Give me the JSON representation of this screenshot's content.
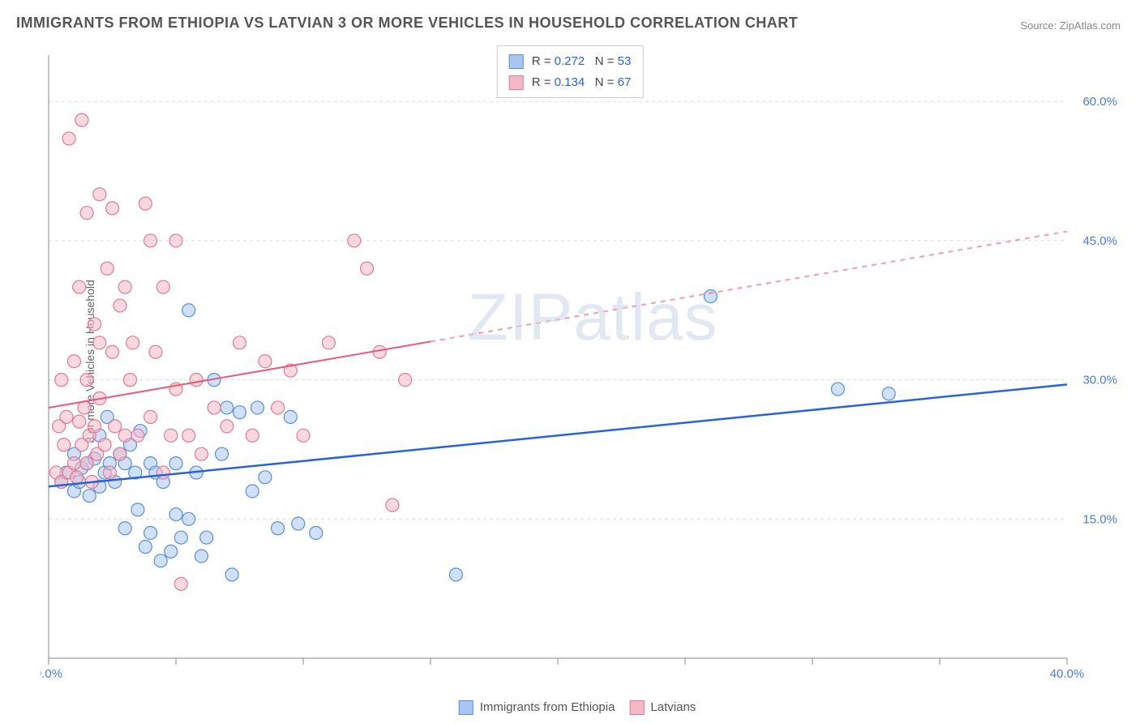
{
  "title": "IMMIGRANTS FROM ETHIOPIA VS LATVIAN 3 OR MORE VEHICLES IN HOUSEHOLD CORRELATION CHART",
  "source": "Source: ZipAtlas.com",
  "ylabel": "3 or more Vehicles in Household",
  "watermark": "ZIPatlas",
  "chart": {
    "type": "scatter",
    "xlim": [
      0,
      40
    ],
    "ylim": [
      0,
      65
    ],
    "xticks": [
      0,
      40
    ],
    "xtick_labels": [
      "0.0%",
      "40.0%"
    ],
    "yticks": [
      15,
      30,
      45,
      60
    ],
    "ytick_labels": [
      "15.0%",
      "30.0%",
      "45.0%",
      "60.0%"
    ],
    "x_minor_ticks": [
      5,
      10,
      15,
      20,
      25,
      30,
      35
    ],
    "grid_color": "#dddddd",
    "axis_color": "#888888",
    "background": "#ffffff",
    "marker_radius": 8,
    "marker_opacity": 0.55,
    "series": [
      {
        "name": "Immigrants from Ethiopia",
        "color_fill": "#a8c6f0",
        "color_stroke": "#5a8fd8",
        "R": "0.272",
        "N": "53",
        "trend": {
          "x1": 0,
          "y1": 18.5,
          "x2": 40,
          "y2": 29.5,
          "solid_until_x": 40,
          "stroke": "#2a62d8",
          "width": 2.5
        },
        "points": [
          [
            0.5,
            19
          ],
          [
            0.7,
            20
          ],
          [
            1.0,
            18
          ],
          [
            1.0,
            22
          ],
          [
            1.2,
            19
          ],
          [
            1.3,
            20.5
          ],
          [
            1.5,
            21
          ],
          [
            1.6,
            17.5
          ],
          [
            1.8,
            21.5
          ],
          [
            2.0,
            18.5
          ],
          [
            2.0,
            24
          ],
          [
            2.2,
            20
          ],
          [
            2.3,
            26
          ],
          [
            2.4,
            21
          ],
          [
            2.6,
            19
          ],
          [
            2.8,
            22
          ],
          [
            3.0,
            14
          ],
          [
            3.0,
            21
          ],
          [
            3.2,
            23
          ],
          [
            3.4,
            20
          ],
          [
            3.5,
            16
          ],
          [
            3.6,
            24.5
          ],
          [
            3.8,
            12
          ],
          [
            4.0,
            21
          ],
          [
            4.0,
            13.5
          ],
          [
            4.2,
            20
          ],
          [
            4.4,
            10.5
          ],
          [
            4.5,
            19
          ],
          [
            4.8,
            11.5
          ],
          [
            5.0,
            21
          ],
          [
            5.0,
            15.5
          ],
          [
            5.2,
            13
          ],
          [
            5.5,
            37.5
          ],
          [
            5.5,
            15
          ],
          [
            5.8,
            20
          ],
          [
            6.0,
            11
          ],
          [
            6.2,
            13
          ],
          [
            6.5,
            30
          ],
          [
            6.8,
            22
          ],
          [
            7.0,
            27
          ],
          [
            7.2,
            9
          ],
          [
            7.5,
            26.5
          ],
          [
            8.0,
            18
          ],
          [
            8.2,
            27
          ],
          [
            8.5,
            19.5
          ],
          [
            9.0,
            14
          ],
          [
            9.5,
            26
          ],
          [
            9.8,
            14.5
          ],
          [
            10.5,
            13.5
          ],
          [
            16.0,
            9
          ],
          [
            26.0,
            39
          ],
          [
            31.0,
            29
          ],
          [
            33.0,
            28.5
          ]
        ]
      },
      {
        "name": "Latvians",
        "color_fill": "#f4b8c6",
        "color_stroke": "#e07a94",
        "R": "0.134",
        "N": "67",
        "trend": {
          "x1": 0,
          "y1": 27,
          "x2": 40,
          "y2": 46,
          "solid_until_x": 15,
          "stroke": "#e85a7a",
          "width": 2
        },
        "points": [
          [
            0.3,
            20
          ],
          [
            0.4,
            25
          ],
          [
            0.5,
            19
          ],
          [
            0.5,
            30
          ],
          [
            0.6,
            23
          ],
          [
            0.7,
            26
          ],
          [
            0.8,
            20
          ],
          [
            0.8,
            56
          ],
          [
            1.0,
            21
          ],
          [
            1.0,
            32
          ],
          [
            1.1,
            19.5
          ],
          [
            1.2,
            25.5
          ],
          [
            1.2,
            40
          ],
          [
            1.3,
            23
          ],
          [
            1.3,
            58
          ],
          [
            1.4,
            27
          ],
          [
            1.5,
            21
          ],
          [
            1.5,
            30
          ],
          [
            1.5,
            48
          ],
          [
            1.6,
            24
          ],
          [
            1.7,
            19
          ],
          [
            1.8,
            25
          ],
          [
            1.8,
            36
          ],
          [
            1.9,
            22
          ],
          [
            2.0,
            28
          ],
          [
            2.0,
            34
          ],
          [
            2.0,
            50
          ],
          [
            2.2,
            23
          ],
          [
            2.3,
            42
          ],
          [
            2.4,
            20
          ],
          [
            2.5,
            33
          ],
          [
            2.5,
            48.5
          ],
          [
            2.6,
            25
          ],
          [
            2.8,
            22
          ],
          [
            2.8,
            38
          ],
          [
            3.0,
            24
          ],
          [
            3.0,
            40
          ],
          [
            3.2,
            30
          ],
          [
            3.3,
            34
          ],
          [
            3.5,
            24
          ],
          [
            3.8,
            49
          ],
          [
            4.0,
            45
          ],
          [
            4.0,
            26
          ],
          [
            4.2,
            33
          ],
          [
            4.5,
            20
          ],
          [
            4.5,
            40
          ],
          [
            4.8,
            24
          ],
          [
            5.0,
            29
          ],
          [
            5.0,
            45
          ],
          [
            5.2,
            8
          ],
          [
            5.5,
            24
          ],
          [
            5.8,
            30
          ],
          [
            6.0,
            22
          ],
          [
            6.5,
            27
          ],
          [
            7.0,
            25
          ],
          [
            7.5,
            34
          ],
          [
            8.0,
            24
          ],
          [
            8.5,
            32
          ],
          [
            9.0,
            27
          ],
          [
            9.5,
            31
          ],
          [
            10.0,
            24
          ],
          [
            11.0,
            34
          ],
          [
            12.0,
            45
          ],
          [
            12.5,
            42
          ],
          [
            13.0,
            33
          ],
          [
            13.5,
            16.5
          ],
          [
            14.0,
            30
          ]
        ]
      }
    ]
  },
  "bottom_legend": [
    {
      "label": "Immigrants from Ethiopia",
      "fill": "#a8c6f0",
      "stroke": "#5a8fd8"
    },
    {
      "label": "Latvians",
      "fill": "#f4b8c6",
      "stroke": "#e07a94"
    }
  ],
  "top_legend": [
    {
      "fill": "#a8c6f0",
      "stroke": "#5a8fd8",
      "R": "0.272",
      "N": "53"
    },
    {
      "fill": "#f4b8c6",
      "stroke": "#e07a94",
      "R": "0.134",
      "N": "67"
    }
  ]
}
